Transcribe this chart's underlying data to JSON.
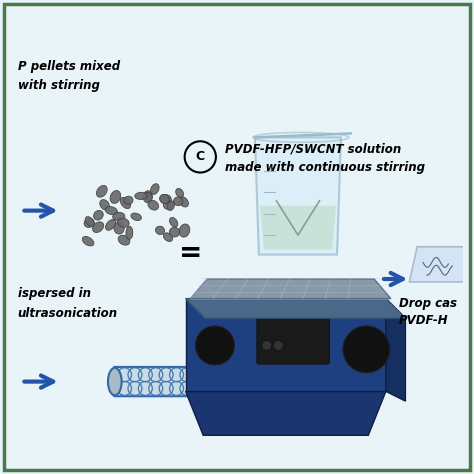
{
  "background_color": "#e8f4f8",
  "border_color": "#4a7a4a",
  "text_top_left_line1": "P pellets mixed",
  "text_top_left_line2": "with stirring",
  "text_bottom_left_line1": "ispersed in",
  "text_bottom_left_line2": "ultrasonication",
  "text_right_line1": "Drop cas",
  "text_right_line2": "PVDF-H",
  "pvdf_line1": "PVDF-HFP/SWCNT solution",
  "pvdf_line2": "made with continuous stirring",
  "arrow_color": "#2255aa",
  "pellets_color": "#777777",
  "hotplate_dark": "#1a3570",
  "hotplate_mid": "#2a5090",
  "hotplate_plate": "#6688aa",
  "hotplate_top_plate": "#8899bb",
  "beaker_fill": "#cce8f0",
  "beaker_edge": "#99bbcc",
  "liquid_color": "#aad4cc",
  "vortex_color": "#889988",
  "film_color": "#d8e8f4",
  "film_edge": "#aabbcc",
  "nanotube_fill": "#c0d8e8",
  "nanotube_edge": "#4477aa"
}
